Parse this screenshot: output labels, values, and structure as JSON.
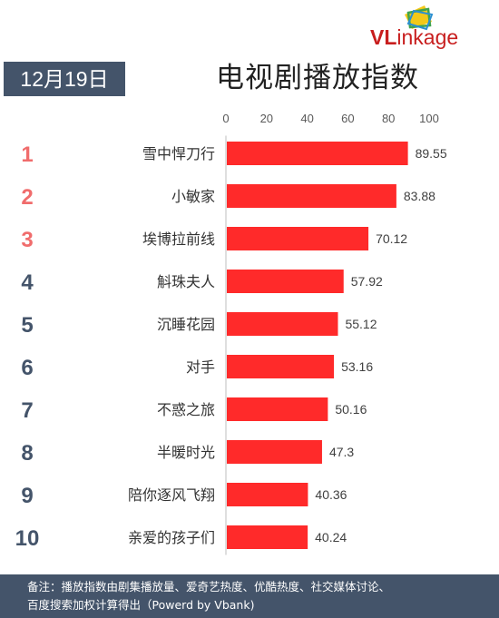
{
  "date_label": "12月19日",
  "logo": {
    "brand_v": "VL",
    "brand_rest": "inkage"
  },
  "chart_data": {
    "type": "bar",
    "orientation": "horizontal",
    "title": "电视剧播放指数",
    "ranks": [
      "1",
      "2",
      "3",
      "4",
      "5",
      "6",
      "7",
      "8",
      "9",
      "10"
    ],
    "categories": [
      "雪中悍刀行",
      "小敏家",
      "埃博拉前线",
      "斛珠夫人",
      "沉睡花园",
      "对手",
      "不惑之旅",
      "半暖时光",
      "陪你逐风飞翔",
      "亲爱的孩子们"
    ],
    "values": [
      89.55,
      83.88,
      70.12,
      57.92,
      55.12,
      53.16,
      50.16,
      47.3,
      40.36,
      40.24
    ],
    "value_labels": [
      "89.55",
      "83.88",
      "70.12",
      "57.92",
      "55.12",
      "53.16",
      "50.16",
      "47.3",
      "40.36",
      "40.24"
    ],
    "xlim": [
      0,
      100
    ],
    "xticks": [
      0,
      20,
      40,
      60,
      80,
      100
    ],
    "axis_position": "top",
    "grid": false,
    "bar_color": "#ff2a2a",
    "rank_colors": {
      "top3": "#f06c6c",
      "rest": "#44546a"
    }
  },
  "footer": {
    "line1": "备注：播放指数由剧集播放量、爱奇艺热度、优酷热度、社交媒体讨论、",
    "line2": "百度搜索加权计算得出（Powerd by Vbank)"
  }
}
